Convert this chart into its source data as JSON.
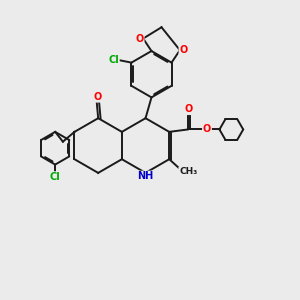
{
  "bg_color": "#ebebeb",
  "bond_color": "#1a1a1a",
  "bond_width": 1.4,
  "dbo": 0.055,
  "atom_colors": {
    "O": "#ff0000",
    "N": "#0000cc",
    "Cl": "#00aa00",
    "C": "#1a1a1a"
  },
  "figsize": [
    3.0,
    3.0
  ],
  "dpi": 100
}
